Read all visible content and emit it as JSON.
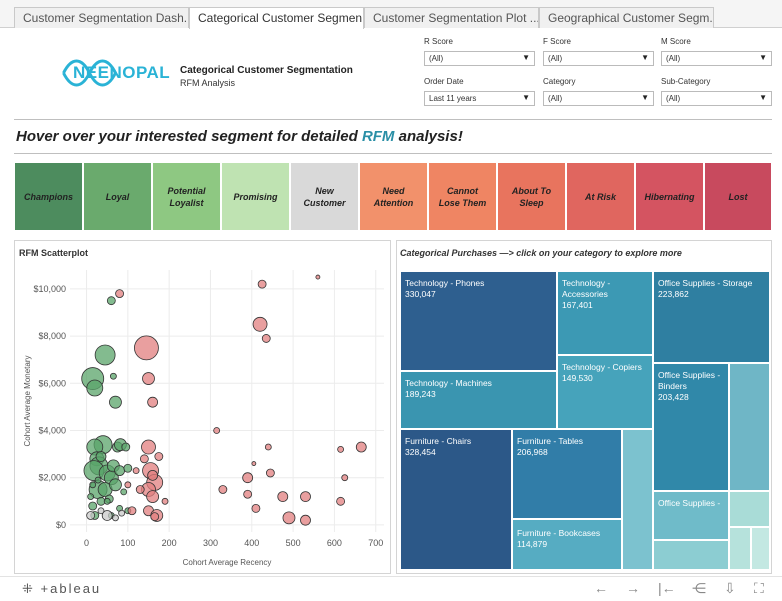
{
  "tabs": [
    {
      "label": "Customer Segmentation Dash..."
    },
    {
      "label": "Categorical Customer Segmen..."
    },
    {
      "label": "Customer Segmentation Plot ..."
    },
    {
      "label": "Geographical Customer Segm..."
    }
  ],
  "header": {
    "logo_text": "NEENOPAL",
    "title": "Categorical Customer Segmentation",
    "subtitle": "RFM Analysis"
  },
  "filters": [
    {
      "label": "R Score",
      "value": "(All)"
    },
    {
      "label": "F Score",
      "value": "(All)"
    },
    {
      "label": "M Score",
      "value": "(All)"
    },
    {
      "label": "Order Date",
      "value": "Last 11 years"
    },
    {
      "label": "Category",
      "value": "(All)"
    },
    {
      "label": "Sub-Category",
      "value": "(All)"
    }
  ],
  "hover": {
    "prefix": "Hover over your interested segment for detailed ",
    "highlight": "RFM",
    "suffix": " analysis!"
  },
  "segments": [
    {
      "label": "Champions",
      "color": "#4d8c5e"
    },
    {
      "label": "Loyal",
      "color": "#6aaa6d"
    },
    {
      "label": "Potential Loyalist",
      "color": "#8ec882"
    },
    {
      "label": "Promising",
      "color": "#bfe3b2"
    },
    {
      "label": "New Customer",
      "color": "#d9d9d9"
    },
    {
      "label": "Need Attention",
      "color": "#f2916b"
    },
    {
      "label": "Cannot Lose Them",
      "color": "#ef8563"
    },
    {
      "label": "About To Sleep",
      "color": "#e8745e"
    },
    {
      "label": "At Risk",
      "color": "#e0665f"
    },
    {
      "label": "Hibernating",
      "color": "#d45461"
    },
    {
      "label": "Lost",
      "color": "#c84a5e"
    }
  ],
  "scatter": {
    "title": "RFM Scatterplot",
    "chart_data": {
      "type": "scatter",
      "xlabel": "Cohort Average Recency",
      "ylabel": "Cohort Average Monetary",
      "xlim": [
        -40,
        720
      ],
      "ylim": [
        -300,
        10800
      ],
      "x_ticks": [
        "0",
        "100",
        "200",
        "300",
        "400",
        "500",
        "600",
        "700"
      ],
      "x_tick_values": [
        0,
        100,
        200,
        300,
        400,
        500,
        600,
        700
      ],
      "y_ticks": [
        "$0",
        "$2,000",
        "$4,000",
        "$6,000",
        "$8,000",
        "$10,000"
      ],
      "y_tick_values": [
        0,
        2000,
        4000,
        6000,
        8000,
        10000
      ],
      "series": [
        {
          "name": "green",
          "color": "#5aa469",
          "points": [
            [
              15,
              6200,
              11
            ],
            [
              20,
              5800,
              8
            ],
            [
              45,
              7200,
              10
            ],
            [
              40,
              3400,
              9
            ],
            [
              20,
              3300,
              8
            ],
            [
              25,
              2800,
              7
            ],
            [
              30,
              2500,
              9
            ],
            [
              18,
              2300,
              10
            ],
            [
              50,
              2200,
              8
            ],
            [
              60,
              2000,
              7
            ],
            [
              28,
              1500,
              9
            ],
            [
              45,
              1500,
              7
            ],
            [
              70,
              1700,
              6
            ],
            [
              65,
              2500,
              6
            ],
            [
              80,
              2300,
              5
            ],
            [
              75,
              3300,
              5
            ],
            [
              82,
              3400,
              6
            ],
            [
              95,
              3300,
              4
            ],
            [
              100,
              2400,
              4
            ],
            [
              55,
              1100,
              4
            ],
            [
              35,
              1000,
              4
            ],
            [
              15,
              1700,
              3
            ],
            [
              10,
              1200,
              3
            ],
            [
              60,
              9500,
              4
            ],
            [
              20,
              400,
              4
            ],
            [
              60,
              400,
              3
            ],
            [
              80,
              700,
              3
            ],
            [
              15,
              800,
              4
            ],
            [
              28,
              1900,
              3
            ],
            [
              50,
              1000,
              3
            ],
            [
              70,
              5200,
              6
            ],
            [
              90,
              1400,
              3
            ],
            [
              35,
              2900,
              5
            ],
            [
              100,
              600,
              3
            ],
            [
              65,
              6300,
              3
            ]
          ]
        },
        {
          "name": "gray",
          "color": "#c9c9c9",
          "points": [
            [
              50,
              400,
              5
            ],
            [
              10,
              400,
              4
            ],
            [
              35,
              600,
              3
            ],
            [
              70,
              300,
              3
            ],
            [
              85,
              500,
              3
            ]
          ]
        },
        {
          "name": "red",
          "color": "#e27f7f",
          "points": [
            [
              145,
              7500,
              12
            ],
            [
              150,
              6200,
              6
            ],
            [
              160,
              5200,
              5
            ],
            [
              80,
              9800,
              4
            ],
            [
              150,
              3300,
              7
            ],
            [
              155,
              2300,
              8
            ],
            [
              165,
              1800,
              8
            ],
            [
              150,
              1500,
              7
            ],
            [
              160,
              1200,
              6
            ],
            [
              150,
              600,
              5
            ],
            [
              170,
              400,
              6
            ],
            [
              110,
              600,
              4
            ],
            [
              140,
              2800,
              4
            ],
            [
              175,
              2900,
              4
            ],
            [
              120,
              2300,
              3
            ],
            [
              130,
              1500,
              4
            ],
            [
              160,
              2100,
              5
            ],
            [
              420,
              8500,
              7
            ],
            [
              425,
              10200,
              4
            ],
            [
              435,
              7900,
              4
            ],
            [
              315,
              4000,
              3
            ],
            [
              330,
              1500,
              4
            ],
            [
              390,
              2000,
              5
            ],
            [
              390,
              1300,
              4
            ],
            [
              410,
              700,
              4
            ],
            [
              445,
              2200,
              4
            ],
            [
              475,
              1200,
              5
            ],
            [
              490,
              300,
              6
            ],
            [
              530,
              1200,
              5
            ],
            [
              530,
              200,
              5
            ],
            [
              560,
              10500,
              2
            ],
            [
              615,
              3200,
              3
            ],
            [
              625,
              2000,
              3
            ],
            [
              615,
              1000,
              4
            ],
            [
              665,
              3300,
              5
            ],
            [
              440,
              3300,
              3
            ],
            [
              405,
              2600,
              2
            ],
            [
              190,
              1000,
              3
            ],
            [
              165,
              350,
              4
            ],
            [
              100,
              1700,
              3
            ]
          ]
        }
      ]
    }
  },
  "treemap": {
    "title": "Categorical Purchases —> click on your category to explore more",
    "cells": [
      {
        "name": "Technology - Phones",
        "value": "330,047",
        "color": "#2e5f8f"
      },
      {
        "name": "Technology - Accessories",
        "value": "167,401",
        "color": "#3c99b4"
      },
      {
        "name": "Office Supplies - Storage",
        "value": "223,862",
        "color": "#2f7fa1"
      },
      {
        "name": "Technology - Machines",
        "value": "189,243",
        "color": "#3a95b0"
      },
      {
        "name": "Technology - Copiers",
        "value": "149,530",
        "color": "#46a3bb"
      },
      {
        "name": "Office Supplies - Binders",
        "value": "203,428",
        "color": "#3088a9"
      },
      {
        "name": "Furniture - Chairs",
        "value": "328,454",
        "color": "#2c5888"
      },
      {
        "name": "Furniture - Tables",
        "value": "206,968",
        "color": "#317da8"
      },
      {
        "name": "Furniture - Bookcases",
        "value": "114,879",
        "color": "#56acc2"
      },
      {
        "name": "Office Supplies -",
        "value": "",
        "color": "#6fbbc9"
      }
    ]
  },
  "footer": {
    "logo": "+ableau"
  }
}
